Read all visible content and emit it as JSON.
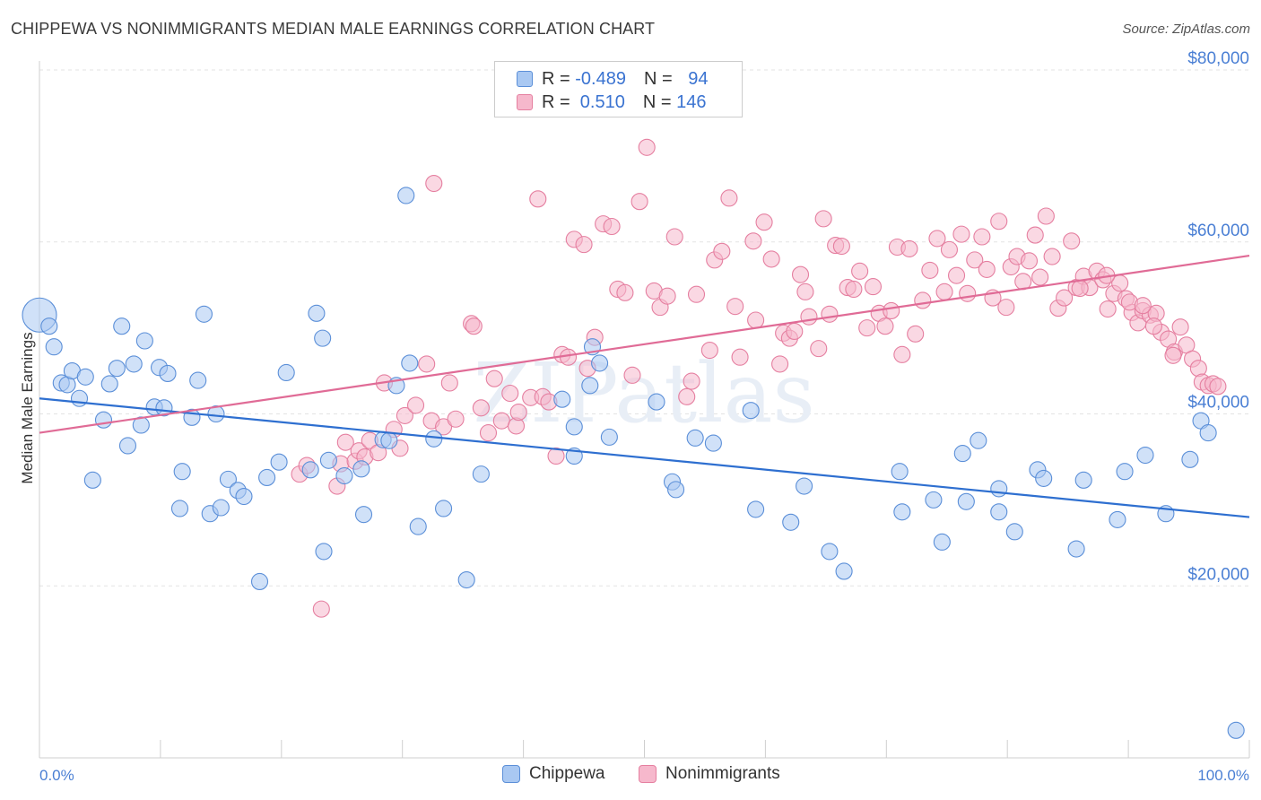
{
  "title": "CHIPPEWA VS NONIMMIGRANTS MEDIAN MALE EARNINGS CORRELATION CHART",
  "source": "Source: ZipAtlas.com",
  "watermark": "ZIPatlas",
  "legend": {
    "rows": [
      {
        "r_label": "R = ",
        "r_value": "-0.489",
        "n_label": "N = ",
        "n_value": "94",
        "color": "#a9c8f2"
      },
      {
        "r_label": "R = ",
        "r_value": " 0.510",
        "n_label": "N = ",
        "n_value": "146",
        "color": "#f6b8cc"
      }
    ]
  },
  "bottom_legend": [
    {
      "label": "Chippewa",
      "color": "#a9c8f2"
    },
    {
      "label": "Nonimmigrants",
      "color": "#f6b8cc"
    }
  ],
  "chart_data": {
    "type": "scatter",
    "title": "CHIPPEWA VS NONIMMIGRANTS MEDIAN MALE EARNINGS CORRELATION CHART",
    "xlabel": "",
    "ylabel": "Median Male Earnings",
    "xlim": [
      0,
      100
    ],
    "ylim": [
      0,
      80000
    ],
    "x_tick_labels": [
      {
        "value": 0,
        "label": "0.0%"
      },
      {
        "value": 100,
        "label": "100.0%"
      }
    ],
    "y_ticks": [
      {
        "value": 20000,
        "label": "$20,000"
      },
      {
        "value": 40000,
        "label": "$40,000"
      },
      {
        "value": 60000,
        "label": "$60,000"
      },
      {
        "value": 80000,
        "label": "$80,000"
      }
    ],
    "grid": true,
    "series": [
      {
        "name": "Chippewa",
        "color": "#a9c8f2",
        "edge_color": "#5b8fd8",
        "line_color": "#2e6fd0",
        "trend": {
          "x": [
            0,
            100
          ],
          "y": [
            41800,
            28000
          ]
        },
        "points": [
          [
            0.0,
            51500
          ],
          [
            0.8,
            50200
          ],
          [
            1.2,
            47800
          ],
          [
            1.8,
            43600
          ],
          [
            2.3,
            43400
          ],
          [
            2.7,
            45000
          ],
          [
            3.3,
            41800
          ],
          [
            3.8,
            44300
          ],
          [
            4.4,
            32300
          ],
          [
            5.3,
            39300
          ],
          [
            5.8,
            43500
          ],
          [
            6.4,
            45300
          ],
          [
            6.8,
            50200
          ],
          [
            7.3,
            36300
          ],
          [
            7.8,
            45800
          ],
          [
            8.4,
            38700
          ],
          [
            8.7,
            48500
          ],
          [
            9.5,
            40800
          ],
          [
            9.9,
            45400
          ],
          [
            10.3,
            40700
          ],
          [
            10.6,
            44700
          ],
          [
            11.6,
            29000
          ],
          [
            11.8,
            33300
          ],
          [
            12.6,
            39600
          ],
          [
            13.1,
            43900
          ],
          [
            13.6,
            51600
          ],
          [
            14.1,
            28400
          ],
          [
            14.6,
            40000
          ],
          [
            15.0,
            29100
          ],
          [
            15.6,
            32400
          ],
          [
            16.4,
            31100
          ],
          [
            16.9,
            30400
          ],
          [
            18.2,
            20500
          ],
          [
            18.8,
            32600
          ],
          [
            19.8,
            34400
          ],
          [
            20.4,
            44800
          ],
          [
            22.4,
            33500
          ],
          [
            22.9,
            51700
          ],
          [
            23.4,
            48800
          ],
          [
            23.5,
            24000
          ],
          [
            23.9,
            34600
          ],
          [
            25.2,
            32800
          ],
          [
            26.6,
            33600
          ],
          [
            26.8,
            28300
          ],
          [
            28.4,
            37000
          ],
          [
            28.9,
            36900
          ],
          [
            29.5,
            43300
          ],
          [
            30.3,
            65400
          ],
          [
            30.6,
            45900
          ],
          [
            31.3,
            26900
          ],
          [
            32.6,
            37100
          ],
          [
            33.4,
            29000
          ],
          [
            35.3,
            20700
          ],
          [
            36.5,
            33000
          ],
          [
            43.2,
            41700
          ],
          [
            44.2,
            38500
          ],
          [
            44.2,
            35100
          ],
          [
            45.5,
            43300
          ],
          [
            45.7,
            47800
          ],
          [
            46.3,
            45900
          ],
          [
            47.1,
            37300
          ],
          [
            51.0,
            41400
          ],
          [
            52.3,
            32100
          ],
          [
            52.6,
            31200
          ],
          [
            54.2,
            37200
          ],
          [
            55.7,
            36600
          ],
          [
            58.8,
            40400
          ],
          [
            59.2,
            28900
          ],
          [
            62.1,
            27400
          ],
          [
            63.2,
            31600
          ],
          [
            65.3,
            24000
          ],
          [
            66.5,
            21700
          ],
          [
            71.1,
            33300
          ],
          [
            71.3,
            28600
          ],
          [
            73.9,
            30000
          ],
          [
            74.6,
            25100
          ],
          [
            76.3,
            35400
          ],
          [
            76.6,
            29800
          ],
          [
            77.6,
            36900
          ],
          [
            79.3,
            28600
          ],
          [
            79.3,
            31300
          ],
          [
            80.6,
            26300
          ],
          [
            82.5,
            33500
          ],
          [
            83.0,
            32500
          ],
          [
            85.7,
            24300
          ],
          [
            86.3,
            32300
          ],
          [
            89.1,
            27700
          ],
          [
            89.7,
            33300
          ],
          [
            91.4,
            35200
          ],
          [
            93.1,
            28400
          ],
          [
            95.1,
            34700
          ],
          [
            96.0,
            39200
          ],
          [
            96.6,
            37800
          ],
          [
            98.9,
            3200
          ]
        ]
      },
      {
        "name": "Nonimmigrants",
        "color": "#f6b8cc",
        "edge_color": "#e57fa0",
        "line_color": "#e06b96",
        "trend": {
          "x": [
            0,
            100
          ],
          "y": [
            37800,
            58400
          ]
        },
        "points": [
          [
            21.5,
            33000
          ],
          [
            22.1,
            34000
          ],
          [
            23.3,
            17300
          ],
          [
            24.6,
            31600
          ],
          [
            24.9,
            34200
          ],
          [
            25.3,
            36700
          ],
          [
            26.1,
            34500
          ],
          [
            26.4,
            35700
          ],
          [
            26.9,
            35000
          ],
          [
            27.3,
            36900
          ],
          [
            28.0,
            35500
          ],
          [
            28.5,
            43600
          ],
          [
            29.3,
            38200
          ],
          [
            29.8,
            36000
          ],
          [
            30.2,
            39800
          ],
          [
            31.1,
            41000
          ],
          [
            32.0,
            45800
          ],
          [
            32.4,
            39200
          ],
          [
            32.6,
            66800
          ],
          [
            33.4,
            38500
          ],
          [
            33.9,
            43600
          ],
          [
            34.4,
            39400
          ],
          [
            35.7,
            50500
          ],
          [
            35.9,
            50200
          ],
          [
            36.5,
            40700
          ],
          [
            37.1,
            37800
          ],
          [
            37.6,
            44100
          ],
          [
            38.2,
            39200
          ],
          [
            38.9,
            42400
          ],
          [
            39.4,
            38600
          ],
          [
            39.6,
            40200
          ],
          [
            40.6,
            41900
          ],
          [
            41.2,
            65000
          ],
          [
            41.6,
            42000
          ],
          [
            42.1,
            41400
          ],
          [
            42.7,
            35100
          ],
          [
            43.2,
            46900
          ],
          [
            43.7,
            46600
          ],
          [
            44.2,
            60300
          ],
          [
            45.0,
            59700
          ],
          [
            45.3,
            45300
          ],
          [
            45.9,
            48900
          ],
          [
            46.6,
            62100
          ],
          [
            47.3,
            61800
          ],
          [
            47.8,
            54500
          ],
          [
            48.4,
            54100
          ],
          [
            49.0,
            44500
          ],
          [
            49.6,
            64700
          ],
          [
            50.2,
            71000
          ],
          [
            50.8,
            54300
          ],
          [
            51.3,
            52400
          ],
          [
            51.9,
            53700
          ],
          [
            52.5,
            60600
          ],
          [
            53.5,
            42000
          ],
          [
            53.9,
            43800
          ],
          [
            54.3,
            53900
          ],
          [
            55.4,
            47400
          ],
          [
            55.8,
            57900
          ],
          [
            56.4,
            58900
          ],
          [
            57.0,
            65100
          ],
          [
            57.5,
            52500
          ],
          [
            57.9,
            46600
          ],
          [
            59.0,
            60100
          ],
          [
            59.2,
            50900
          ],
          [
            59.9,
            62300
          ],
          [
            60.5,
            58000
          ],
          [
            61.2,
            45800
          ],
          [
            61.5,
            49400
          ],
          [
            62.0,
            48800
          ],
          [
            62.4,
            49600
          ],
          [
            62.9,
            56200
          ],
          [
            63.3,
            54200
          ],
          [
            63.6,
            51300
          ],
          [
            64.4,
            47600
          ],
          [
            64.8,
            62700
          ],
          [
            65.3,
            51600
          ],
          [
            65.8,
            59600
          ],
          [
            66.3,
            59500
          ],
          [
            66.8,
            54700
          ],
          [
            67.3,
            54500
          ],
          [
            67.8,
            56600
          ],
          [
            68.4,
            50000
          ],
          [
            68.9,
            54800
          ],
          [
            69.4,
            51700
          ],
          [
            69.9,
            50200
          ],
          [
            70.4,
            52000
          ],
          [
            70.9,
            59400
          ],
          [
            71.3,
            46900
          ],
          [
            71.9,
            59200
          ],
          [
            72.4,
            49300
          ],
          [
            73.0,
            53200
          ],
          [
            73.6,
            56700
          ],
          [
            74.2,
            60400
          ],
          [
            74.8,
            54200
          ],
          [
            75.2,
            59100
          ],
          [
            75.8,
            56100
          ],
          [
            76.2,
            60900
          ],
          [
            76.7,
            54000
          ],
          [
            77.3,
            57900
          ],
          [
            77.9,
            60600
          ],
          [
            78.3,
            56800
          ],
          [
            78.8,
            53500
          ],
          [
            79.3,
            62400
          ],
          [
            79.9,
            52400
          ],
          [
            80.3,
            57100
          ],
          [
            80.8,
            58300
          ],
          [
            81.3,
            55400
          ],
          [
            81.8,
            57800
          ],
          [
            82.3,
            60800
          ],
          [
            82.7,
            55900
          ],
          [
            83.2,
            63000
          ],
          [
            83.7,
            58300
          ],
          [
            84.2,
            52300
          ],
          [
            84.7,
            53500
          ],
          [
            85.3,
            60100
          ],
          [
            85.7,
            54700
          ],
          [
            86.3,
            56000
          ],
          [
            86.8,
            54700
          ],
          [
            87.4,
            56600
          ],
          [
            87.9,
            55600
          ],
          [
            88.3,
            52200
          ],
          [
            88.8,
            54000
          ],
          [
            89.3,
            55200
          ],
          [
            89.8,
            53400
          ],
          [
            90.3,
            51800
          ],
          [
            90.8,
            50600
          ],
          [
            91.2,
            52000
          ],
          [
            91.8,
            51500
          ],
          [
            92.3,
            51700
          ],
          [
            92.7,
            49500
          ],
          [
            93.3,
            48700
          ],
          [
            93.8,
            47200
          ],
          [
            94.3,
            50100
          ],
          [
            94.8,
            48000
          ],
          [
            95.3,
            46400
          ],
          [
            95.8,
            45300
          ],
          [
            96.1,
            43700
          ],
          [
            96.6,
            43300
          ],
          [
            97.0,
            43500
          ],
          [
            97.4,
            43200
          ],
          [
            86.0,
            54600
          ],
          [
            88.2,
            56100
          ],
          [
            90.1,
            53000
          ],
          [
            91.2,
            52600
          ],
          [
            92.1,
            50200
          ],
          [
            93.7,
            46800
          ]
        ]
      }
    ]
  }
}
